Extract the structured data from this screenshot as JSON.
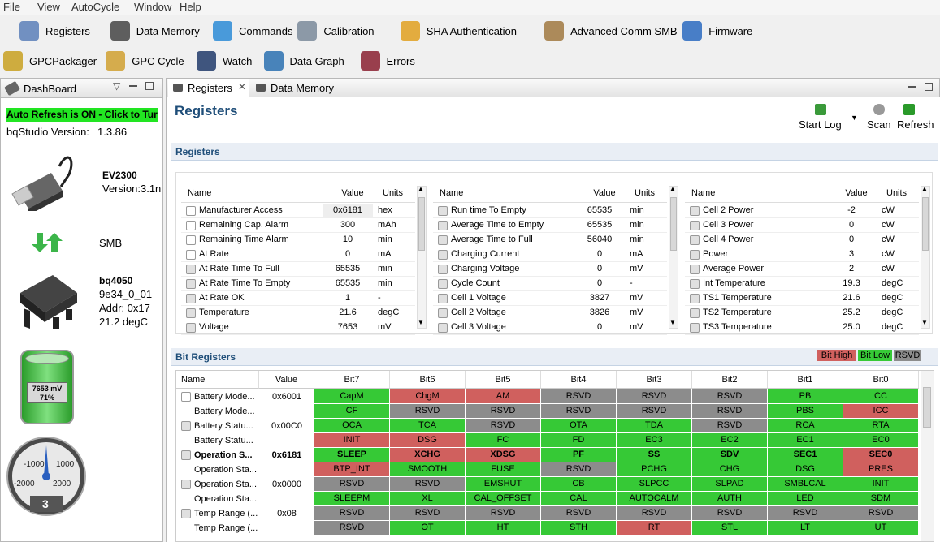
{
  "menu": [
    "File",
    "View",
    "AutoCycle",
    "Window",
    "Help"
  ],
  "toolbar": {
    "row1": [
      "Registers",
      "Data Memory",
      "Commands",
      "Calibration",
      "SHA Authentication",
      "Advanced Comm SMB",
      "Firmware"
    ],
    "row2": [
      "GPCPackager",
      "GPC Cycle",
      "Watch",
      "Data Graph",
      "Errors"
    ]
  },
  "dashboard": {
    "title": "DashBoard",
    "auto_refresh": "Auto Refresh is ON - Click to Turn",
    "version_label": "bqStudio Version:",
    "version": "1.3.86",
    "adapter": {
      "name": "EV2300",
      "version": "Version:3.1n"
    },
    "bus": "SMB",
    "device": {
      "name": "bq4050",
      "id": "9e34_0_01",
      "addr": "Addr: 0x17",
      "temp": "21.2 degC"
    },
    "battery": {
      "voltage": "7653 mV",
      "percent": "71%"
    },
    "gauge": {
      "labels": [
        "-1000",
        "1000",
        "-2000",
        "2000"
      ],
      "value": "3"
    }
  },
  "tabs": [
    "Registers",
    "Data Memory"
  ],
  "page": {
    "title": "Registers",
    "actions": [
      "Start Log",
      "Scan",
      "Refresh"
    ]
  },
  "registers": {
    "title": "Registers",
    "columns": [
      "Name",
      "Value",
      "Units"
    ],
    "tables": [
      {
        "rows": [
          {
            "icon": "edit",
            "name": "Manufacturer Access",
            "value": "0x6181",
            "units": "hex"
          },
          {
            "icon": "edit",
            "name": "Remaining Cap. Alarm",
            "value": "300",
            "units": "mAh"
          },
          {
            "icon": "edit",
            "name": "Remaining Time Alarm",
            "value": "10",
            "units": "min"
          },
          {
            "icon": "edit",
            "name": "At Rate",
            "value": "0",
            "units": "mA"
          },
          {
            "icon": "lock",
            "name": "At Rate Time To Full",
            "value": "65535",
            "units": "min"
          },
          {
            "icon": "lock",
            "name": "At Rate Time To Empty",
            "value": "65535",
            "units": "min"
          },
          {
            "icon": "lock",
            "name": "At Rate OK",
            "value": "1",
            "units": "-"
          },
          {
            "icon": "lock",
            "name": "Temperature",
            "value": "21.6",
            "units": "degC"
          },
          {
            "icon": "lock",
            "name": "Voltage",
            "value": "7653",
            "units": "mV"
          }
        ]
      },
      {
        "rows": [
          {
            "icon": "lock",
            "name": "Run time To Empty",
            "value": "65535",
            "units": "min"
          },
          {
            "icon": "lock",
            "name": "Average Time to Empty",
            "value": "65535",
            "units": "min"
          },
          {
            "icon": "lock",
            "name": "Average Time to Full",
            "value": "56040",
            "units": "min"
          },
          {
            "icon": "lock",
            "name": "Charging Current",
            "value": "0",
            "units": "mA"
          },
          {
            "icon": "lock",
            "name": "Charging Voltage",
            "value": "0",
            "units": "mV"
          },
          {
            "icon": "lock",
            "name": "Cycle Count",
            "value": "0",
            "units": "-"
          },
          {
            "icon": "lock",
            "name": "Cell 1 Voltage",
            "value": "3827",
            "units": "mV"
          },
          {
            "icon": "lock",
            "name": "Cell 2 Voltage",
            "value": "3826",
            "units": "mV"
          },
          {
            "icon": "lock",
            "name": "Cell 3 Voltage",
            "value": "0",
            "units": "mV"
          }
        ]
      },
      {
        "rows": [
          {
            "icon": "lock",
            "name": "Cell 2 Power",
            "value": "-2",
            "units": "cW"
          },
          {
            "icon": "lock",
            "name": "Cell 3 Power",
            "value": "0",
            "units": "cW"
          },
          {
            "icon": "lock",
            "name": "Cell 4 Power",
            "value": "0",
            "units": "cW"
          },
          {
            "icon": "lock",
            "name": "Power",
            "value": "3",
            "units": "cW"
          },
          {
            "icon": "lock",
            "name": "Average Power",
            "value": "2",
            "units": "cW"
          },
          {
            "icon": "lock",
            "name": "Int Temperature",
            "value": "19.3",
            "units": "degC"
          },
          {
            "icon": "lock",
            "name": "TS1 Temperature",
            "value": "21.6",
            "units": "degC"
          },
          {
            "icon": "lock",
            "name": "TS2 Temperature",
            "value": "25.2",
            "units": "degC"
          },
          {
            "icon": "lock",
            "name": "TS3 Temperature",
            "value": "25.0",
            "units": "degC"
          }
        ]
      }
    ]
  },
  "bit_registers": {
    "title": "Bit Registers",
    "legend": [
      {
        "label": "Bit High",
        "color": "#d0605e"
      },
      {
        "label": "Bit Low",
        "color": "#36c936"
      },
      {
        "label": "RSVD",
        "color": "#8c8c8c"
      }
    ],
    "columns": [
      "Name",
      "Value",
      "Bit7",
      "Bit6",
      "Bit5",
      "Bit4",
      "Bit3",
      "Bit2",
      "Bit1",
      "Bit0"
    ],
    "rows": [
      {
        "icon": "edit",
        "name": "Battery Mode...",
        "value": "0x6001",
        "bits": [
          {
            "label": "CapM",
            "state": 1
          },
          {
            "label": "ChgM",
            "state": 0
          },
          {
            "label": "AM",
            "state": 0
          },
          {
            "label": "RSVD",
            "state": 2
          },
          {
            "label": "RSVD",
            "state": 2
          },
          {
            "label": "RSVD",
            "state": 2
          },
          {
            "label": "PB",
            "state": 1
          },
          {
            "label": "CC",
            "state": 1
          }
        ]
      },
      {
        "name": "Battery Mode...",
        "value": null,
        "bits": [
          {
            "label": "CF",
            "state": 1
          },
          {
            "label": "RSVD",
            "state": 2
          },
          {
            "label": "RSVD",
            "state": 2
          },
          {
            "label": "RSVD",
            "state": 2
          },
          {
            "label": "RSVD",
            "state": 2
          },
          {
            "label": "RSVD",
            "state": 2
          },
          {
            "label": "PBS",
            "state": 1
          },
          {
            "label": "ICC",
            "state": 0
          }
        ]
      },
      {
        "icon": "lock",
        "name": "Battery Statu...",
        "value": "0x00C0",
        "bits": [
          {
            "label": "OCA",
            "state": 1
          },
          {
            "label": "TCA",
            "state": 1
          },
          {
            "label": "RSVD",
            "state": 2
          },
          {
            "label": "OTA",
            "state": 1
          },
          {
            "label": "TDA",
            "state": 1
          },
          {
            "label": "RSVD",
            "state": 2
          },
          {
            "label": "RCA",
            "state": 1
          },
          {
            "label": "RTA",
            "state": 1
          }
        ]
      },
      {
        "name": "Battery Statu...",
        "value": null,
        "bits": [
          {
            "label": "INIT",
            "state": 0
          },
          {
            "label": "DSG",
            "state": 0
          },
          {
            "label": "FC",
            "state": 1
          },
          {
            "label": "FD",
            "state": 1
          },
          {
            "label": "EC3",
            "state": 1
          },
          {
            "label": "EC2",
            "state": 1
          },
          {
            "label": "EC1",
            "state": 1
          },
          {
            "label": "EC0",
            "state": 1
          }
        ]
      },
      {
        "icon": "lock",
        "bold": true,
        "name": "Operation S...",
        "value": "0x6181",
        "bits": [
          {
            "label": "SLEEP",
            "state": 1
          },
          {
            "label": "XCHG",
            "state": 0
          },
          {
            "label": "XDSG",
            "state": 0
          },
          {
            "label": "PF",
            "state": 1
          },
          {
            "label": "SS",
            "state": 1
          },
          {
            "label": "SDV",
            "state": 1
          },
          {
            "label": "SEC1",
            "state": 1
          },
          {
            "label": "SEC0",
            "state": 0
          }
        ]
      },
      {
        "name": "Operation Sta...",
        "value": null,
        "bits": [
          {
            "label": "BTP_INT",
            "state": 0
          },
          {
            "label": "SMOOTH",
            "state": 1
          },
          {
            "label": "FUSE",
            "state": 1
          },
          {
            "label": "RSVD",
            "state": 2
          },
          {
            "label": "PCHG",
            "state": 1
          },
          {
            "label": "CHG",
            "state": 1
          },
          {
            "label": "DSG",
            "state": 1
          },
          {
            "label": "PRES",
            "state": 0
          }
        ]
      },
      {
        "icon": "lock",
        "name": "Operation Sta...",
        "value": "0x0000",
        "bits": [
          {
            "label": "RSVD",
            "state": 2
          },
          {
            "label": "RSVD",
            "state": 2
          },
          {
            "label": "EMSHUT",
            "state": 1
          },
          {
            "label": "CB",
            "state": 1
          },
          {
            "label": "SLPCC",
            "state": 1
          },
          {
            "label": "SLPAD",
            "state": 1
          },
          {
            "label": "SMBLCAL",
            "state": 1
          },
          {
            "label": "INIT",
            "state": 1
          }
        ]
      },
      {
        "name": "Operation Sta...",
        "value": null,
        "bits": [
          {
            "label": "SLEEPM",
            "state": 1
          },
          {
            "label": "XL",
            "state": 1
          },
          {
            "label": "CAL_OFFSET",
            "state": 1
          },
          {
            "label": "CAL",
            "state": 1
          },
          {
            "label": "AUTOCALM",
            "state": 1
          },
          {
            "label": "AUTH",
            "state": 1
          },
          {
            "label": "LED",
            "state": 1
          },
          {
            "label": "SDM",
            "state": 1
          }
        ]
      },
      {
        "icon": "lock",
        "name": "Temp Range (...",
        "value": "0x08",
        "bits": [
          {
            "label": "RSVD",
            "state": 2
          },
          {
            "label": "RSVD",
            "state": 2
          },
          {
            "label": "RSVD",
            "state": 2
          },
          {
            "label": "RSVD",
            "state": 2
          },
          {
            "label": "RSVD",
            "state": 2
          },
          {
            "label": "RSVD",
            "state": 2
          },
          {
            "label": "RSVD",
            "state": 2
          },
          {
            "label": "RSVD",
            "state": 2
          }
        ]
      },
      {
        "name": "Temp Range (...",
        "value": null,
        "bits": [
          {
            "label": "RSVD",
            "state": 2
          },
          {
            "label": "OT",
            "state": 1
          },
          {
            "label": "HT",
            "state": 1
          },
          {
            "label": "STH",
            "state": 1
          },
          {
            "label": "RT",
            "state": 0
          },
          {
            "label": "STL",
            "state": 1
          },
          {
            "label": "LT",
            "state": 1
          },
          {
            "label": "UT",
            "state": 1
          }
        ]
      }
    ]
  }
}
